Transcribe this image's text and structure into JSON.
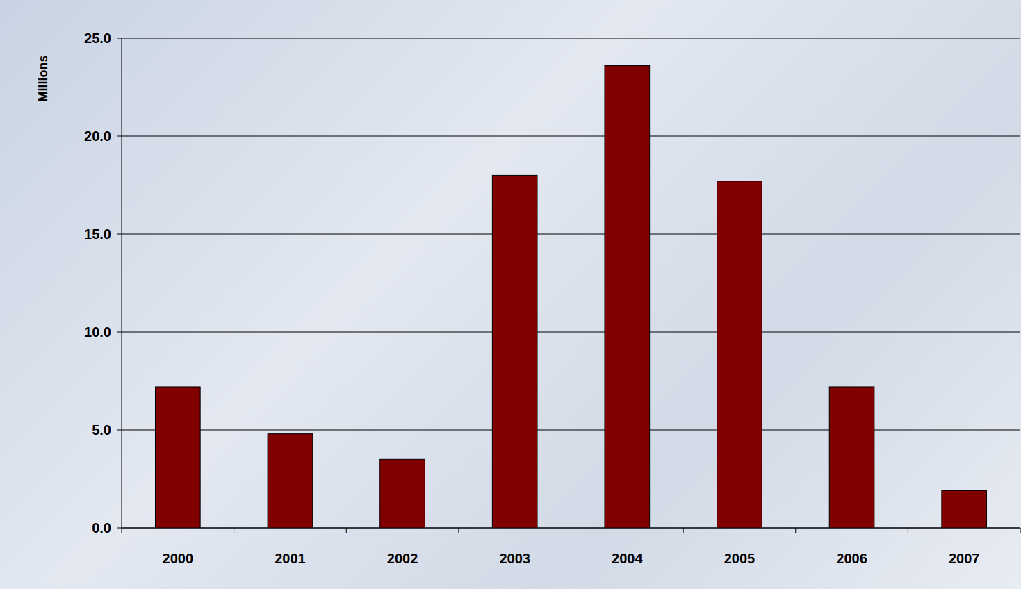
{
  "chart_data": {
    "type": "bar",
    "y_label": "Millions",
    "categories": [
      "2000",
      "2001",
      "2002",
      "2003",
      "2004",
      "2005",
      "2006",
      "2007"
    ],
    "values": [
      7.2,
      4.8,
      3.5,
      18.0,
      23.6,
      17.7,
      7.2,
      1.9
    ],
    "color": "#800000",
    "ylim": [
      0,
      25
    ],
    "yticks": [
      {
        "value": 0,
        "label": "0.0"
      },
      {
        "value": 5,
        "label": "5.0"
      },
      {
        "value": 10,
        "label": "10.0"
      },
      {
        "value": 15,
        "label": "15.0"
      },
      {
        "value": 20,
        "label": "20.0"
      },
      {
        "value": 25,
        "label": "25.0"
      }
    ],
    "grid": true
  }
}
